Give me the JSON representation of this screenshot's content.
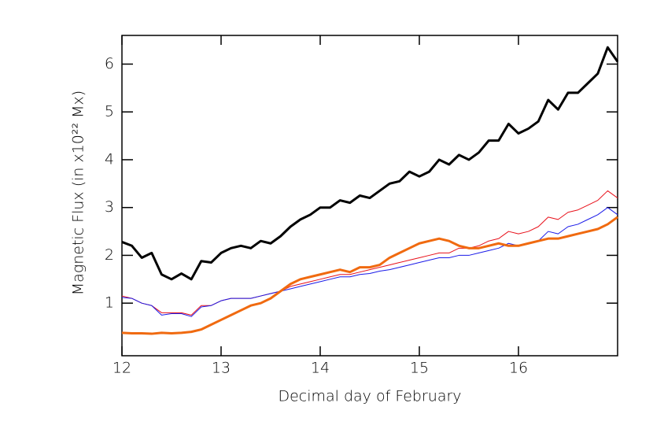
{
  "chart_data": {
    "type": "line",
    "xlabel": "Decimal day of February",
    "ylabel": "Magnetic Flux (in x10²² Mx)",
    "x": [
      12.0,
      12.1,
      12.2,
      12.3,
      12.4,
      12.5,
      12.6,
      12.7,
      12.8,
      12.9,
      13.0,
      13.1,
      13.2,
      13.3,
      13.4,
      13.5,
      13.6,
      13.7,
      13.8,
      13.9,
      14.0,
      14.1,
      14.2,
      14.3,
      14.4,
      14.5,
      14.6,
      14.7,
      14.8,
      14.9,
      15.0,
      15.1,
      15.2,
      15.3,
      15.4,
      15.5,
      15.6,
      15.7,
      15.8,
      15.9,
      16.0,
      16.1,
      16.2,
      16.3,
      16.4,
      16.5,
      16.6,
      16.7,
      16.8,
      16.9,
      17.0
    ],
    "series": [
      {
        "color": "#000000",
        "width": 3,
        "values": [
          2.28,
          2.2,
          1.95,
          2.05,
          1.6,
          1.5,
          1.62,
          1.5,
          1.88,
          1.85,
          2.05,
          2.15,
          2.2,
          2.15,
          2.3,
          2.25,
          2.4,
          2.6,
          2.75,
          2.85,
          3.0,
          3.0,
          3.15,
          3.1,
          3.25,
          3.2,
          3.35,
          3.5,
          3.55,
          3.75,
          3.65,
          3.75,
          4.0,
          3.9,
          4.1,
          4.0,
          4.15,
          4.4,
          4.4,
          4.75,
          4.55,
          4.65,
          4.8,
          5.25,
          5.05,
          5.4,
          5.4,
          5.6,
          5.8,
          6.35,
          6.05
        ]
      },
      {
        "color": "#e8101a",
        "width": 1,
        "values": [
          1.15,
          1.1,
          1.0,
          0.95,
          0.8,
          0.8,
          0.8,
          0.75,
          0.95,
          0.95,
          1.05,
          1.1,
          1.1,
          1.1,
          1.15,
          1.2,
          1.25,
          1.35,
          1.4,
          1.45,
          1.5,
          1.55,
          1.6,
          1.6,
          1.65,
          1.7,
          1.75,
          1.8,
          1.85,
          1.9,
          1.95,
          2.0,
          2.05,
          2.05,
          2.15,
          2.15,
          2.2,
          2.3,
          2.35,
          2.5,
          2.45,
          2.5,
          2.6,
          2.8,
          2.75,
          2.9,
          2.95,
          3.05,
          3.15,
          3.35,
          3.2
        ]
      },
      {
        "color": "#1a1ae8",
        "width": 1,
        "values": [
          1.12,
          1.1,
          1.0,
          0.95,
          0.75,
          0.78,
          0.78,
          0.72,
          0.92,
          0.95,
          1.05,
          1.1,
          1.1,
          1.1,
          1.15,
          1.2,
          1.25,
          1.3,
          1.35,
          1.4,
          1.45,
          1.5,
          1.55,
          1.55,
          1.6,
          1.62,
          1.67,
          1.7,
          1.75,
          1.8,
          1.85,
          1.9,
          1.95,
          1.95,
          2.0,
          2.0,
          2.05,
          2.1,
          2.15,
          2.25,
          2.2,
          2.25,
          2.3,
          2.5,
          2.45,
          2.6,
          2.65,
          2.75,
          2.85,
          3.0,
          2.85
        ]
      },
      {
        "color": "#f06a10",
        "width": 3,
        "values": [
          0.38,
          0.37,
          0.37,
          0.36,
          0.38,
          0.37,
          0.38,
          0.4,
          0.45,
          0.55,
          0.65,
          0.75,
          0.85,
          0.95,
          1.0,
          1.1,
          1.25,
          1.4,
          1.5,
          1.55,
          1.6,
          1.65,
          1.7,
          1.65,
          1.75,
          1.75,
          1.8,
          1.95,
          2.05,
          2.15,
          2.25,
          2.3,
          2.35,
          2.3,
          2.2,
          2.15,
          2.15,
          2.2,
          2.25,
          2.2,
          2.2,
          2.25,
          2.3,
          2.35,
          2.35,
          2.4,
          2.45,
          2.5,
          2.55,
          2.65,
          2.8
        ]
      }
    ],
    "xlim": [
      12,
      17
    ],
    "xticks": [
      12,
      13,
      14,
      15,
      16
    ],
    "ylim": [
      -0.1,
      6.6
    ],
    "yticks": [
      1,
      2,
      3,
      4,
      5,
      6
    ]
  }
}
